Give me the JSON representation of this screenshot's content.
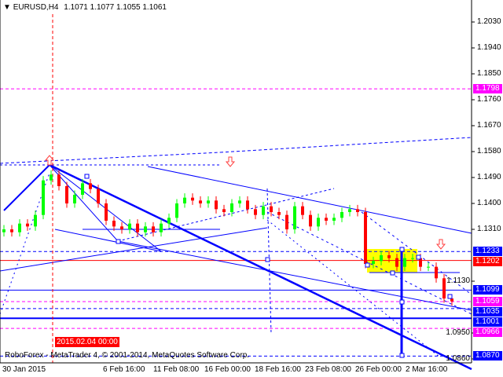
{
  "header": {
    "symbol": "EURUSD,H4",
    "ohlc": "1.1071 1.1077 1.1055 1.1061",
    "menu_icon": "triangle-down-icon"
  },
  "footer": {
    "copyright": "RoboForex - MetaTrader 4, © 2001-2014, MetaQuotes Software Corp."
  },
  "crosshair": {
    "time_label": "2015.02.04 00:00"
  },
  "colors": {
    "bull": "#00ff00",
    "bear": "#ff0000",
    "trend": "#0000ff",
    "level_magenta": "#ff00ff",
    "crosshair": "#ff0000",
    "zone": "#ffff00"
  },
  "price_labels": [
    {
      "text": "1.1798",
      "color": "#ff00ff",
      "price": 1.1798
    },
    {
      "text": "1.1233",
      "color": "#0000ff",
      "price": 1.1233
    },
    {
      "text": "1.1202",
      "color": "#ff0000",
      "price": 1.1202
    },
    {
      "text": "1.1099",
      "color": "#0000ff",
      "price": 1.1099
    },
    {
      "text": "1.1059",
      "color": "#ff00ff",
      "price": 1.1059
    },
    {
      "text": "1.1035",
      "color": "#0000ff",
      "price": 1.1035
    },
    {
      "text": "1.1001",
      "color": "#0000ff",
      "price": 1.1001
    },
    {
      "text": "1.0966",
      "color": "#ff00ff",
      "price": 1.0966
    },
    {
      "text": "1.0870",
      "color": "#0000ff",
      "price": 1.087
    }
  ],
  "chart_data": {
    "type": "candlestick",
    "y_ticks": [
      "1.2030",
      "1.1940",
      "1.1850",
      "1.1760",
      "1.1670",
      "1.1580",
      "1.1490",
      "1.1400",
      "1.1310",
      "1.1130",
      "1.0950",
      "1.0860"
    ],
    "ylim": [
      1.084,
      1.21
    ],
    "x_ticks": [
      "30 Jan 2015",
      "6 Feb 16:00",
      "11 Feb 08:00",
      "16 Feb 00:00",
      "18 Feb 16:00",
      "23 Feb 08:00",
      "26 Feb 00:00",
      "2 Mar 16:00"
    ],
    "closes": [
      1.131,
      1.13,
      1.133,
      1.132,
      1.136,
      1.148,
      1.15,
      1.146,
      1.14,
      1.143,
      1.147,
      1.145,
      1.14,
      1.134,
      1.132,
      1.131,
      1.133,
      1.13,
      1.132,
      1.13,
      1.133,
      1.135,
      1.14,
      1.142,
      1.141,
      1.14,
      1.141,
      1.138,
      1.137,
      1.14,
      1.141,
      1.138,
      1.136,
      1.139,
      1.137,
      1.136,
      1.131,
      1.139,
      1.136,
      1.132,
      1.135,
      1.134,
      1.135,
      1.137,
      1.138,
      1.137,
      1.119,
      1.12,
      1.122,
      1.121,
      1.118,
      1.121,
      1.121,
      1.118,
      1.118,
      1.114,
      1.107,
      1.106
    ]
  }
}
